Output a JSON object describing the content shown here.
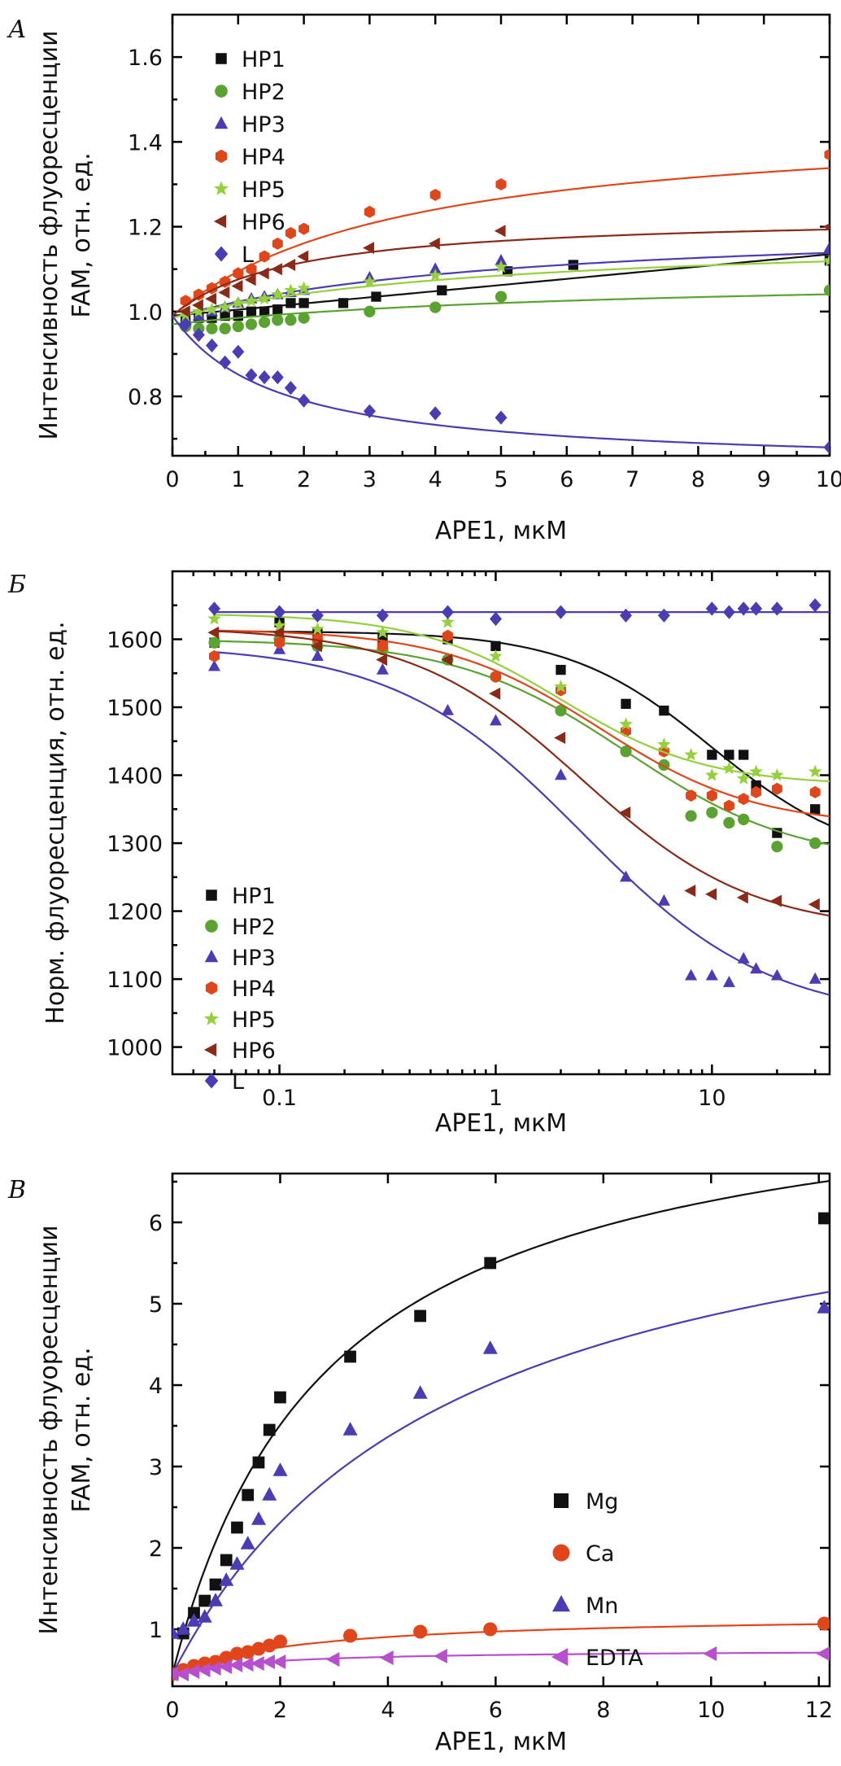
{
  "chart_data": [
    {
      "type": "scatter",
      "panel_label": "А",
      "xlabel": "APE1, мкМ",
      "ylabel": [
        "Интенсивность флуоресценции",
        "FAM, отн. ед."
      ],
      "xlim": [
        0,
        10
      ],
      "ylim": [
        0.66,
        1.7
      ],
      "xscale": "linear",
      "x_ticks": [
        0,
        1,
        2,
        3,
        4,
        5,
        6,
        7,
        8,
        9,
        10
      ],
      "y_ticks": [
        0.8,
        1.0,
        1.2,
        1.4,
        1.6
      ],
      "x_tick_labels": [
        "0",
        "1",
        "2",
        "3",
        "4",
        "5",
        "6",
        "7",
        "8",
        "9",
        "10"
      ],
      "y_tick_labels": [
        "0.8",
        "1.0",
        "1.2",
        "1.4",
        "1.6"
      ],
      "legend_position": "top-left",
      "series": [
        {
          "name": "HP1",
          "color": "#111111",
          "marker": "square",
          "x": [
            0.2,
            0.4,
            0.6,
            0.8,
            1.0,
            1.2,
            1.4,
            1.6,
            1.8,
            2.0,
            2.6,
            3.1,
            4.1,
            5.1,
            6.1,
            10.0
          ],
          "y": [
            0.98,
            0.985,
            0.985,
            0.99,
            0.99,
            1.0,
            1.0,
            1.005,
            1.02,
            1.02,
            1.02,
            1.035,
            1.05,
            1.095,
            1.11,
            1.12
          ],
          "fit": {
            "a": 0.99,
            "b": 0.0145,
            "mode": "linear"
          }
        },
        {
          "name": "HP2",
          "color": "#5ba331",
          "marker": "circle",
          "x": [
            0.2,
            0.4,
            0.6,
            0.8,
            1.0,
            1.2,
            1.4,
            1.6,
            1.8,
            2.0,
            3.0,
            4.0,
            5.0,
            10.0
          ],
          "y": [
            0.965,
            0.96,
            0.96,
            0.96,
            0.965,
            0.97,
            0.975,
            0.98,
            0.98,
            0.985,
            1.0,
            1.01,
            1.035,
            1.05
          ],
          "fit": {
            "y0": 0.97,
            "amp": 0.12,
            "k": 7.0
          }
        },
        {
          "name": "HP3",
          "color": "#4a3cb5",
          "marker": "triangle",
          "x": [
            0.2,
            0.4,
            0.6,
            0.8,
            1.0,
            1.2,
            1.4,
            1.6,
            1.8,
            2.0,
            3.0,
            4.0,
            5.0,
            10.0
          ],
          "y": [
            0.98,
            0.99,
            1.0,
            1.01,
            1.02,
            1.03,
            1.035,
            1.04,
            1.045,
            1.05,
            1.08,
            1.1,
            1.12,
            1.15
          ],
          "fit": {
            "y0": 0.985,
            "amp": 0.23,
            "k": 5.0
          }
        },
        {
          "name": "HP4",
          "color": "#e0461a",
          "marker": "hexagon",
          "x": [
            0.2,
            0.4,
            0.6,
            0.8,
            1.0,
            1.2,
            1.4,
            1.6,
            1.8,
            2.0,
            3.0,
            4.0,
            5.0,
            10.0
          ],
          "y": [
            1.025,
            1.04,
            1.055,
            1.07,
            1.09,
            1.1,
            1.13,
            1.16,
            1.185,
            1.195,
            1.235,
            1.275,
            1.3,
            1.37
          ],
          "fit": {
            "y0": 0.99,
            "amp": 0.47,
            "k": 3.5
          }
        },
        {
          "name": "HP5",
          "color": "#95d13a",
          "marker": "star",
          "x": [
            0.2,
            0.4,
            0.6,
            0.8,
            1.0,
            1.2,
            1.4,
            1.6,
            1.8,
            2.0,
            3.0,
            4.0,
            5.0,
            10.0
          ],
          "y": [
            0.99,
            1.0,
            1.005,
            1.01,
            1.02,
            1.025,
            1.03,
            1.04,
            1.05,
            1.055,
            1.07,
            1.085,
            1.105,
            1.12
          ],
          "fit": {
            "y0": 0.985,
            "amp": 0.2,
            "k": 5.0
          }
        },
        {
          "name": "HP6",
          "color": "#8b2a18",
          "marker": "left-triangle",
          "x": [
            0.2,
            0.4,
            0.6,
            0.8,
            1.0,
            1.2,
            1.4,
            1.6,
            1.8,
            2.0,
            3.0,
            4.0,
            5.0,
            10.0
          ],
          "y": [
            1.0,
            1.015,
            1.03,
            1.045,
            1.06,
            1.075,
            1.09,
            1.1,
            1.11,
            1.13,
            1.15,
            1.16,
            1.19,
            1.2
          ],
          "fit": {
            "y0": 0.99,
            "amp": 0.24,
            "k": 1.8
          }
        },
        {
          "name": "L",
          "color": "#4a3cb5",
          "marker": "diamond",
          "x": [
            0.2,
            0.4,
            0.6,
            0.8,
            1.0,
            1.2,
            1.4,
            1.6,
            1.8,
            2.0,
            3.0,
            4.0,
            5.0,
            10.0
          ],
          "y": [
            0.97,
            0.945,
            0.92,
            0.88,
            0.905,
            0.85,
            0.845,
            0.845,
            0.82,
            0.79,
            0.765,
            0.76,
            0.75,
            0.68
          ],
          "fit": {
            "y0": 0.99,
            "amp": -0.36,
            "k": 1.6
          }
        }
      ]
    },
    {
      "type": "scatter",
      "panel_label": "Б",
      "xlabel": "APE1, мкМ",
      "ylabel": [
        "Норм. флуоресценция, отн. ед."
      ],
      "xlim": [
        0.032,
        35
      ],
      "ylim": [
        960,
        1700
      ],
      "xscale": "log",
      "x_ticks": [
        0.1,
        1,
        10
      ],
      "y_ticks": [
        1000,
        1100,
        1200,
        1300,
        1400,
        1500,
        1600
      ],
      "x_tick_labels": [
        "0.1",
        "1",
        "10"
      ],
      "y_tick_labels": [
        "1000",
        "1100",
        "1200",
        "1300",
        "1400",
        "1500",
        "1600"
      ],
      "legend_position": "bottom-left",
      "series": [
        {
          "name": "HP1",
          "color": "#111111",
          "marker": "square",
          "x": [
            0.05,
            0.1,
            0.15,
            0.3,
            0.6,
            1.0,
            2.0,
            4.0,
            6.0,
            10.0,
            12.0,
            14.0,
            16.0,
            20.0,
            30.0
          ],
          "y": [
            1595,
            1625,
            1610,
            1600,
            1600,
            1590,
            1555,
            1505,
            1495,
            1430,
            1430,
            1430,
            1385,
            1315,
            1350
          ],
          "fit": {
            "top": 1612,
            "bottom": 1270,
            "ec50": 10,
            "h": 1.3
          }
        },
        {
          "name": "HP2",
          "color": "#5ba331",
          "marker": "circle",
          "x": [
            0.05,
            0.1,
            0.15,
            0.3,
            0.6,
            1.0,
            2.0,
            4.0,
            6.0,
            8.0,
            10.0,
            12.0,
            14.0,
            20.0,
            30.0
          ],
          "y": [
            1595,
            1600,
            1590,
            1585,
            1570,
            1545,
            1495,
            1435,
            1415,
            1340,
            1345,
            1330,
            1335,
            1295,
            1300
          ],
          "fit": {
            "top": 1600,
            "bottom": 1270,
            "ec50": 4,
            "h": 1.1
          }
        },
        {
          "name": "HP3",
          "color": "#4a3cb5",
          "marker": "triangle",
          "x": [
            0.05,
            0.1,
            0.15,
            0.3,
            0.6,
            1.0,
            2.0,
            4.0,
            6.0,
            8.0,
            10.0,
            12.0,
            14.0,
            16.0,
            20.0,
            30.0
          ],
          "y": [
            1560,
            1585,
            1575,
            1555,
            1495,
            1480,
            1400,
            1250,
            1215,
            1105,
            1105,
            1095,
            1130,
            1115,
            1105,
            1100
          ],
          "fit": {
            "top": 1592,
            "bottom": 1040,
            "ec50": 2.5,
            "h": 1.0
          }
        },
        {
          "name": "HP4",
          "color": "#e0461a",
          "marker": "hexagon",
          "x": [
            0.05,
            0.1,
            0.15,
            0.3,
            0.6,
            1.0,
            2.0,
            4.0,
            6.0,
            8.0,
            10.0,
            12.0,
            14.0,
            16.0,
            20.0,
            30.0
          ],
          "y": [
            1575,
            1595,
            1600,
            1590,
            1605,
            1545,
            1525,
            1465,
            1435,
            1370,
            1370,
            1355,
            1365,
            1375,
            1380,
            1375
          ],
          "fit": {
            "top": 1615,
            "bottom": 1325,
            "ec50": 3.0,
            "h": 1.2
          }
        },
        {
          "name": "HP5",
          "color": "#95d13a",
          "marker": "star",
          "x": [
            0.05,
            0.1,
            0.15,
            0.3,
            0.6,
            1.0,
            2.0,
            4.0,
            6.0,
            8.0,
            10.0,
            12.0,
            14.0,
            16.0,
            20.0,
            30.0
          ],
          "y": [
            1630,
            1620,
            1615,
            1610,
            1625,
            1575,
            1530,
            1475,
            1445,
            1430,
            1400,
            1410,
            1395,
            1405,
            1400,
            1405
          ],
          "fit": {
            "top": 1638,
            "bottom": 1385,
            "ec50": 2.0,
            "h": 1.3
          }
        },
        {
          "name": "HP6",
          "color": "#8b2a18",
          "marker": "left-triangle",
          "x": [
            0.05,
            0.1,
            0.15,
            0.3,
            0.6,
            1.0,
            2.0,
            4.0,
            8.0,
            10.0,
            14.0,
            20.0,
            30.0
          ],
          "y": [
            1610,
            1610,
            1590,
            1570,
            1570,
            1520,
            1455,
            1345,
            1230,
            1225,
            1220,
            1215,
            1210
          ],
          "fit": {
            "top": 1618,
            "bottom": 1170,
            "ec50": 2.5,
            "h": 1.1
          }
        },
        {
          "name": "L",
          "color": "#4a3cb5",
          "marker": "diamond",
          "x": [
            0.05,
            0.1,
            0.15,
            0.3,
            0.6,
            1.0,
            2.0,
            4.0,
            6.0,
            10.0,
            12.0,
            14.0,
            16.0,
            20.0,
            30.0
          ],
          "y": [
            1645,
            1640,
            1635,
            1635,
            1640,
            1630,
            1640,
            1635,
            1635,
            1645,
            1640,
            1645,
            1645,
            1645,
            1650
          ],
          "fit": {
            "flat": 1640
          }
        }
      ]
    },
    {
      "type": "scatter",
      "panel_label": "В",
      "xlabel": "APE1, мкМ",
      "ylabel": [
        "Интенсивность флуоресценции",
        "FAM, отн. ед."
      ],
      "xlim": [
        0,
        12.2
      ],
      "ylim": [
        0.3,
        6.6
      ],
      "xscale": "linear",
      "x_ticks": [
        0,
        2,
        4,
        6,
        8,
        10,
        12
      ],
      "y_ticks": [
        1,
        2,
        3,
        4,
        5,
        6
      ],
      "x_tick_labels": [
        "0",
        "2",
        "4",
        "6",
        "8",
        "10",
        "12"
      ],
      "y_tick_labels": [
        "1",
        "2",
        "3",
        "4",
        "5",
        "6"
      ],
      "legend_position": "center-right",
      "series": [
        {
          "name": "Mg",
          "color": "#111111",
          "marker": "square",
          "x": [
            0.0,
            0.2,
            0.4,
            0.6,
            0.8,
            1.0,
            1.2,
            1.4,
            1.6,
            1.8,
            2.0,
            3.3,
            4.6,
            5.9,
            12.1
          ],
          "y": [
            0.45,
            0.95,
            1.2,
            1.35,
            1.55,
            1.85,
            2.25,
            2.65,
            3.05,
            3.45,
            3.85,
            4.35,
            4.85,
            5.5,
            6.05
          ],
          "fit": {
            "y0": 0.45,
            "vmax": 7.5,
            "k": 2.9
          }
        },
        {
          "name": "Ca",
          "color": "#e0461a",
          "marker": "circle",
          "x": [
            0.0,
            0.2,
            0.4,
            0.6,
            0.8,
            1.0,
            1.2,
            1.4,
            1.6,
            1.8,
            2.0,
            3.3,
            4.6,
            5.9,
            12.1
          ],
          "y": [
            0.45,
            0.5,
            0.55,
            0.58,
            0.6,
            0.65,
            0.7,
            0.72,
            0.76,
            0.8,
            0.85,
            0.92,
            0.97,
            1.0,
            1.07
          ],
          "fit": {
            "y0": 0.45,
            "vmax": 0.74,
            "k": 2.5
          }
        },
        {
          "name": "Mn",
          "color": "#4a3cb5",
          "marker": "triangle",
          "x": [
            0.0,
            0.2,
            0.4,
            0.6,
            0.8,
            1.0,
            1.2,
            1.4,
            1.6,
            1.8,
            2.0,
            3.3,
            4.6,
            5.9,
            12.1
          ],
          "y": [
            0.95,
            1.0,
            1.1,
            1.15,
            1.35,
            1.6,
            1.8,
            2.05,
            2.35,
            2.65,
            2.95,
            3.45,
            3.9,
            4.45,
            4.95
          ],
          "fit": {
            "y0": 0.45,
            "vmax": 6.7,
            "k": 5.2
          }
        },
        {
          "name": "EDTA",
          "color": "#b84fcf",
          "marker": "left-triangle",
          "x": [
            0.0,
            0.2,
            0.4,
            0.6,
            0.8,
            1.0,
            1.2,
            1.4,
            1.6,
            1.8,
            2.0,
            3.0,
            4.0,
            5.0,
            10.0,
            12.1
          ],
          "y": [
            0.45,
            0.45,
            0.48,
            0.5,
            0.52,
            0.54,
            0.56,
            0.57,
            0.58,
            0.6,
            0.6,
            0.63,
            0.65,
            0.67,
            0.7,
            0.7
          ],
          "fit": {
            "y0": 0.45,
            "vmax": 0.3,
            "k": 1.7
          }
        }
      ]
    }
  ]
}
